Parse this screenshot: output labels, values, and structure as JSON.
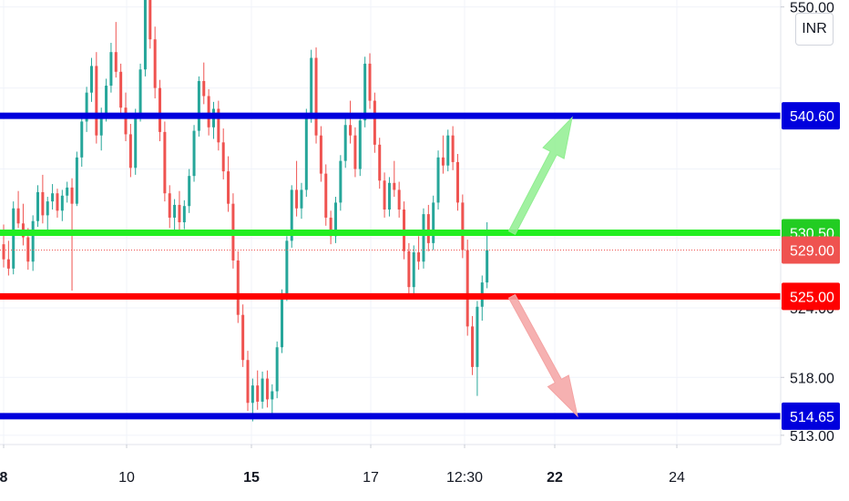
{
  "chart_data": {
    "type": "candlestick",
    "currency": "INR",
    "ylim": [
      512.2,
      550.6
    ],
    "price_ticks": [
      {
        "label": "550.00",
        "value": 550.0
      },
      {
        "label": "524.00",
        "value": 524.0
      },
      {
        "label": "518.00",
        "value": 518.0
      },
      {
        "label": "513.00",
        "value": 513.0
      }
    ],
    "x_ticks": [
      {
        "label": "8",
        "bold": true
      },
      {
        "label": "10",
        "bold": false
      },
      {
        "label": "15",
        "bold": true
      },
      {
        "label": "17",
        "bold": false
      },
      {
        "label": "12:30",
        "bold": false
      },
      {
        "label": "22",
        "bold": true
      },
      {
        "label": "24",
        "bold": false
      }
    ],
    "levels": [
      {
        "name": "upper-resistance",
        "value": 540.6,
        "label": "540.60",
        "color": "#0000dd"
      },
      {
        "name": "breakout-level",
        "value": 530.5,
        "label": "530.50",
        "color": "#22ee22"
      },
      {
        "name": "breakdown-level",
        "value": 525.0,
        "label": "525.00",
        "color": "#ff0000"
      },
      {
        "name": "lower-support",
        "value": 514.65,
        "label": "514.65",
        "color": "#0000dd"
      }
    ],
    "last_price": {
      "value": 529.0,
      "label": "529.00",
      "color": "#ef5350"
    },
    "arrows": [
      {
        "direction": "up",
        "from": 530.5,
        "to": 540.6,
        "color": "#90ee90"
      },
      {
        "direction": "down",
        "from": 525.0,
        "to": 514.65,
        "color": "#f4a3a3"
      }
    ],
    "candle_colors": {
      "up": "#26a69a",
      "down": "#ef5350"
    },
    "candles": [
      [
        529.5,
        531.2,
        527.5,
        528.2
      ],
      [
        528.2,
        529.8,
        526.8,
        527.4
      ],
      [
        527.4,
        533.2,
        526.9,
        532.6
      ],
      [
        532.6,
        534.1,
        530.9,
        531.3
      ],
      [
        531.3,
        533.0,
        529.4,
        530.1
      ],
      [
        530.1,
        530.9,
        527.3,
        528.0
      ],
      [
        528.0,
        532.0,
        527.2,
        531.5
      ],
      [
        531.5,
        534.6,
        531.0,
        534.0
      ],
      [
        534.0,
        535.5,
        531.3,
        532.0
      ],
      [
        532.0,
        533.6,
        530.4,
        533.2
      ],
      [
        533.2,
        534.7,
        532.5,
        533.9
      ],
      [
        533.9,
        534.3,
        531.8,
        532.4
      ],
      [
        532.4,
        534.2,
        531.5,
        533.7
      ],
      [
        533.7,
        534.9,
        533.1,
        534.4
      ],
      [
        534.4,
        535.2,
        525.5,
        533.0
      ],
      [
        533.0,
        537.5,
        532.8,
        537.0
      ],
      [
        537.0,
        540.5,
        536.2,
        540.1
      ],
      [
        540.1,
        543.1,
        539.2,
        542.6
      ],
      [
        542.6,
        545.6,
        541.8,
        544.9
      ],
      [
        544.9,
        546.1,
        538.2,
        538.9
      ],
      [
        538.9,
        541.3,
        537.6,
        540.7
      ],
      [
        540.7,
        543.8,
        540.1,
        543.2
      ],
      [
        543.2,
        546.9,
        542.6,
        546.1
      ],
      [
        546.1,
        548.7,
        543.9,
        544.4
      ],
      [
        544.4,
        545.1,
        540.6,
        541.3
      ],
      [
        541.3,
        542.6,
        538.4,
        539.0
      ],
      [
        539.0,
        539.9,
        535.3,
        536.1
      ],
      [
        536.1,
        541.2,
        535.5,
        540.8
      ],
      [
        540.8,
        545.1,
        540.1,
        544.6
      ],
      [
        544.6,
        551.6,
        544.0,
        550.8
      ],
      [
        550.8,
        552.4,
        546.4,
        547.2
      ],
      [
        547.2,
        548.3,
        542.1,
        543.0
      ],
      [
        543.0,
        543.7,
        538.4,
        539.2
      ],
      [
        539.2,
        540.1,
        533.2,
        533.9
      ],
      [
        533.9,
        534.6,
        530.9,
        531.8
      ],
      [
        531.8,
        533.4,
        530.4,
        532.9
      ],
      [
        532.9,
        534.1,
        530.6,
        531.4
      ],
      [
        531.4,
        533.3,
        530.8,
        532.8
      ],
      [
        532.8,
        536.0,
        532.2,
        535.4
      ],
      [
        535.4,
        539.8,
        534.9,
        539.3
      ],
      [
        539.3,
        544.0,
        538.8,
        543.6
      ],
      [
        543.6,
        545.2,
        541.6,
        542.3
      ],
      [
        542.3,
        542.9,
        538.9,
        539.6
      ],
      [
        539.6,
        541.8,
        538.6,
        541.2
      ],
      [
        541.2,
        541.9,
        537.6,
        538.3
      ],
      [
        538.3,
        539.5,
        535.1,
        535.8
      ],
      [
        535.8,
        537.1,
        532.3,
        533.0
      ],
      [
        533.0,
        533.9,
        527.4,
        528.1
      ],
      [
        528.1,
        528.9,
        522.7,
        523.4
      ],
      [
        523.4,
        524.3,
        518.9,
        519.5
      ],
      [
        519.5,
        520.3,
        515.1,
        515.8
      ],
      [
        515.8,
        517.9,
        514.2,
        517.3
      ],
      [
        517.3,
        518.6,
        515.2,
        515.9
      ],
      [
        515.9,
        518.5,
        515.3,
        517.9
      ],
      [
        517.9,
        518.6,
        515.4,
        516.1
      ],
      [
        516.1,
        517.4,
        514.9,
        516.8
      ],
      [
        516.8,
        521.1,
        516.2,
        520.6
      ],
      [
        520.6,
        525.6,
        520.1,
        525.1
      ],
      [
        525.1,
        530.2,
        524.6,
        529.8
      ],
      [
        529.8,
        534.6,
        529.2,
        534.2
      ],
      [
        534.2,
        536.7,
        531.9,
        532.6
      ],
      [
        532.6,
        534.8,
        531.7,
        534.2
      ],
      [
        534.2,
        541.2,
        533.6,
        540.6
      ],
      [
        540.6,
        546.3,
        540.0,
        545.6
      ],
      [
        545.6,
        546.5,
        538.2,
        538.9
      ],
      [
        538.9,
        539.7,
        534.9,
        535.6
      ],
      [
        535.6,
        536.4,
        531.1,
        531.8
      ],
      [
        531.8,
        532.4,
        529.5,
        530.2
      ],
      [
        530.2,
        533.6,
        529.6,
        533.1
      ],
      [
        533.1,
        537.2,
        532.4,
        536.7
      ],
      [
        536.7,
        540.4,
        536.1,
        539.8
      ],
      [
        539.8,
        541.9,
        538.2,
        538.9
      ],
      [
        538.9,
        539.6,
        535.3,
        536.0
      ],
      [
        536.0,
        540.8,
        535.4,
        540.2
      ],
      [
        540.2,
        545.7,
        539.6,
        545.1
      ],
      [
        545.1,
        546.0,
        541.2,
        541.9
      ],
      [
        541.9,
        542.6,
        537.4,
        538.1
      ],
      [
        538.1,
        538.7,
        534.3,
        535.0
      ],
      [
        535.0,
        535.7,
        531.8,
        532.5
      ],
      [
        532.5,
        535.3,
        531.9,
        534.8
      ],
      [
        534.8,
        536.7,
        533.6,
        534.2
      ],
      [
        534.2,
        534.9,
        531.8,
        532.5
      ],
      [
        532.5,
        533.2,
        528.2,
        528.9
      ],
      [
        528.9,
        529.6,
        525.1,
        525.8
      ],
      [
        525.8,
        529.4,
        525.2,
        528.8
      ],
      [
        528.8,
        530.2,
        527.3,
        528.0
      ],
      [
        528.0,
        532.6,
        527.4,
        532.1
      ],
      [
        532.1,
        532.9,
        528.9,
        529.6
      ],
      [
        529.6,
        533.7,
        529.0,
        533.1
      ],
      [
        533.1,
        537.6,
        532.5,
        537.0
      ],
      [
        537.0,
        538.9,
        535.6,
        536.3
      ],
      [
        536.3,
        539.4,
        535.8,
        538.9
      ],
      [
        538.9,
        539.7,
        535.9,
        536.6
      ],
      [
        536.6,
        537.3,
        532.4,
        533.1
      ],
      [
        533.1,
        533.8,
        528.3,
        529.0
      ],
      [
        529.0,
        529.9,
        521.6,
        522.4
      ],
      [
        522.4,
        523.3,
        518.2,
        518.9
      ],
      [
        518.9,
        524.6,
        516.4,
        524.1
      ],
      [
        524.1,
        526.8,
        522.9,
        526.2
      ],
      [
        526.2,
        531.4,
        525.7,
        529.0
      ]
    ]
  }
}
